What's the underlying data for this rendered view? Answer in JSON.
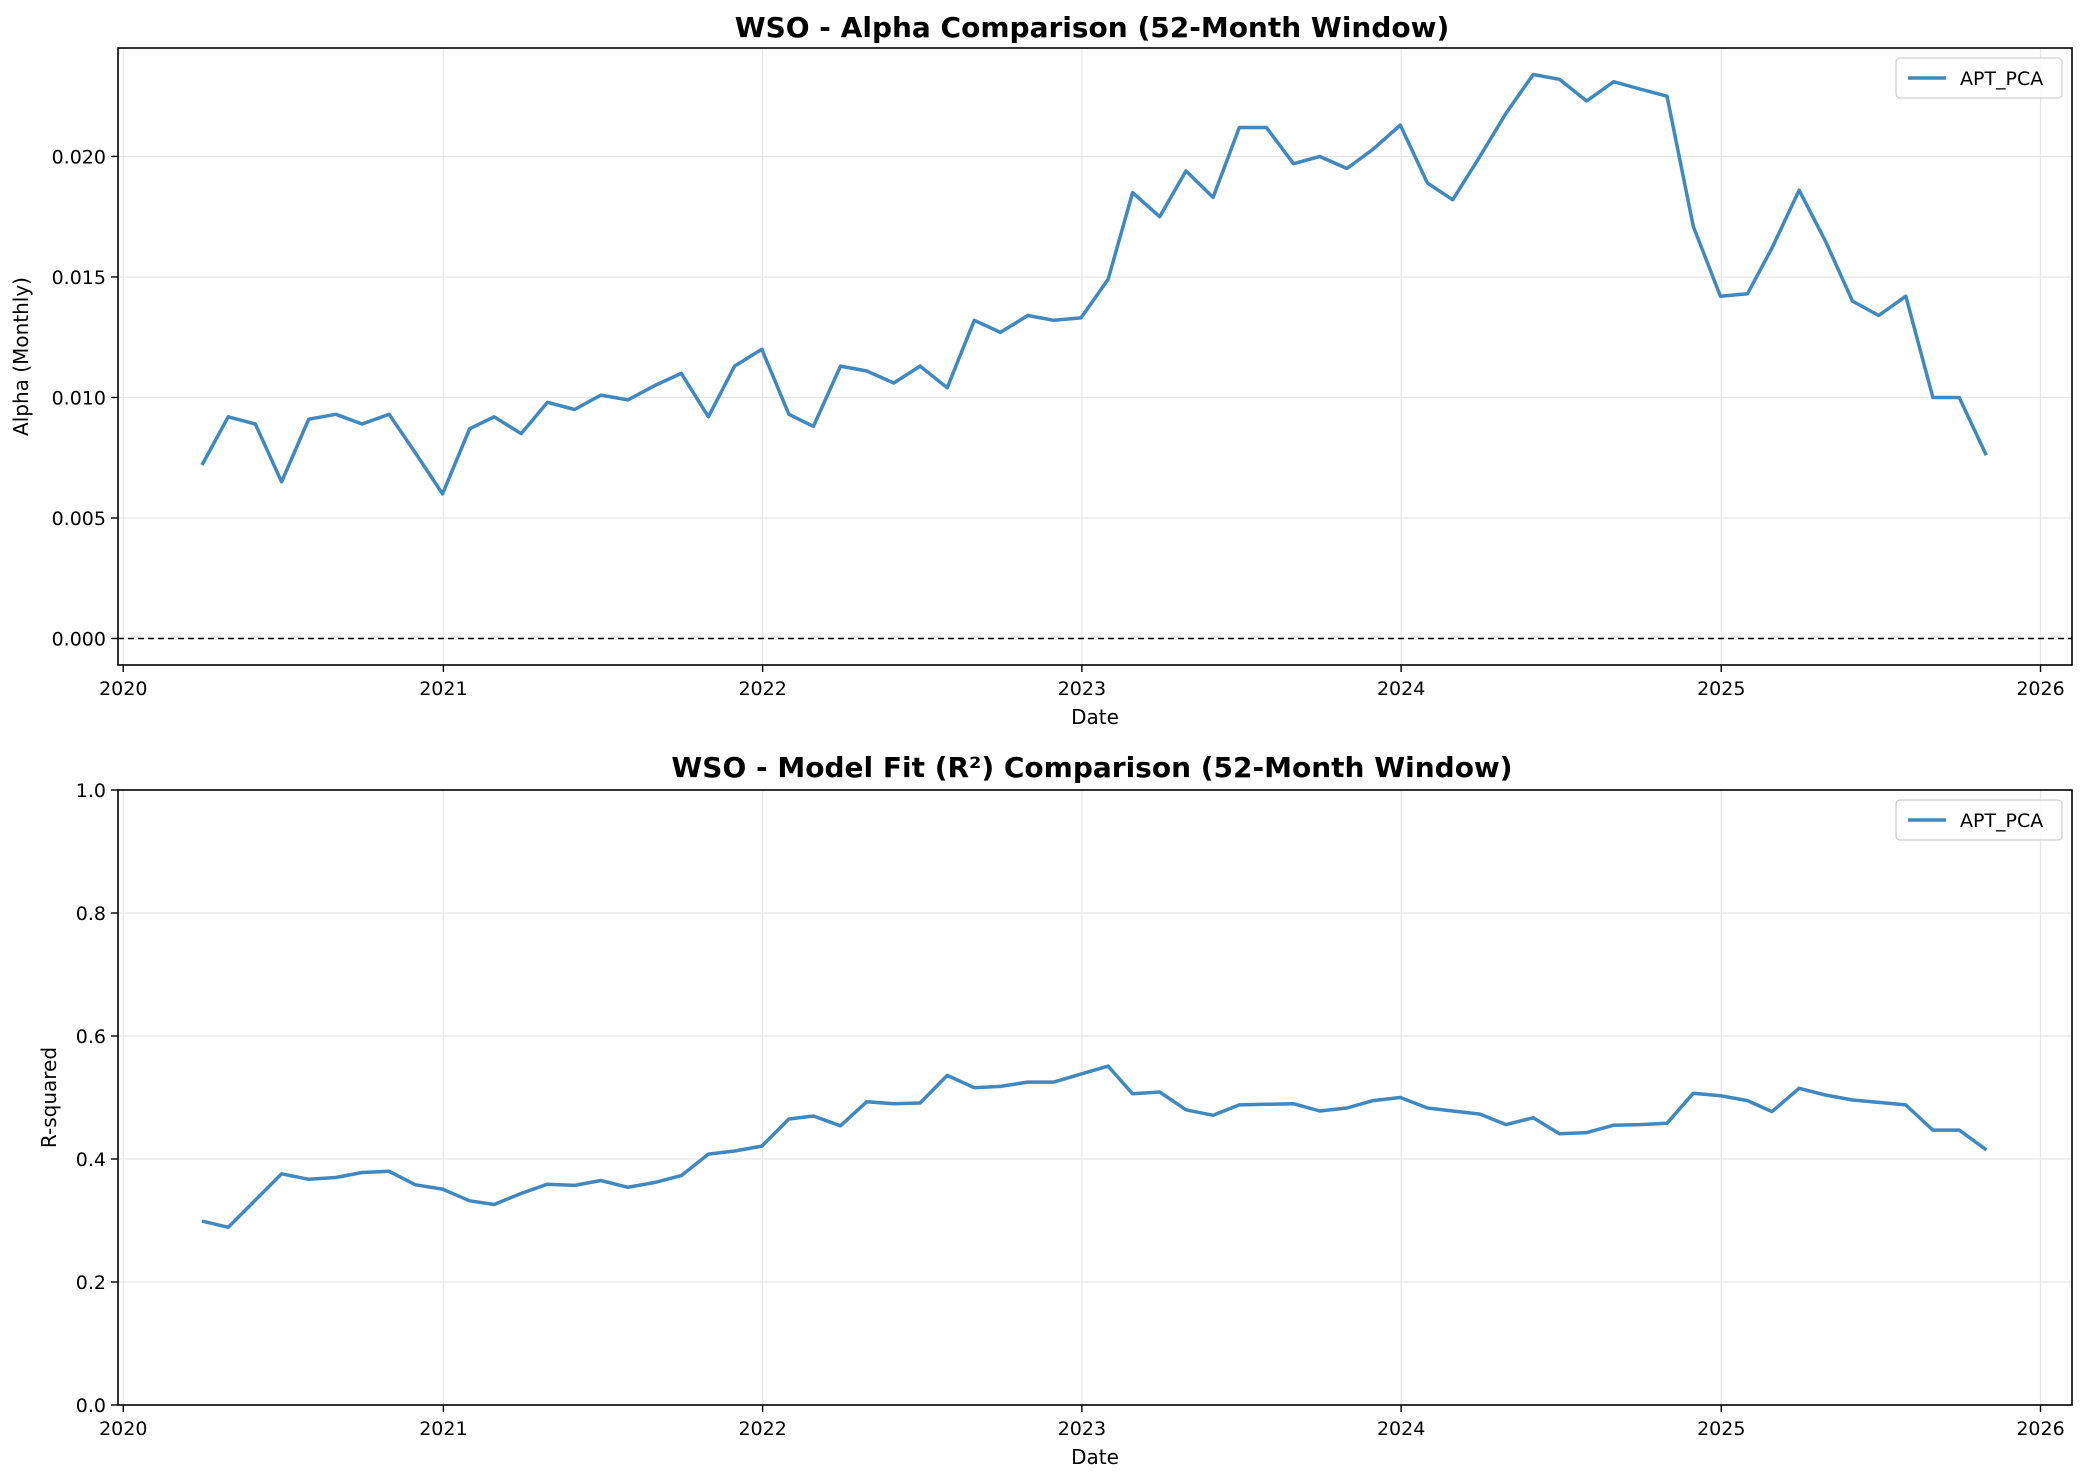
{
  "chart_data": [
    {
      "type": "line",
      "title": "WSO - Alpha Comparison (52-Month Window)",
      "xlabel": "Date",
      "ylabel": "Alpha (Monthly)",
      "xlim": [
        "2019-12-26",
        "2026-02-06"
      ],
      "ylim": [
        -0.0011,
        0.0245
      ],
      "xticks": [
        "2020",
        "2021",
        "2022",
        "2023",
        "2024",
        "2025",
        "2026"
      ],
      "yticks": [
        "0.000",
        "0.005",
        "0.010",
        "0.015",
        "0.020"
      ],
      "grid": true,
      "legend": "top-right",
      "reference_line": {
        "y": 0,
        "style": "dashed",
        "color": "#000000"
      },
      "series": [
        {
          "name": "APT_PCA",
          "color": "#3f88c0",
          "x": [
            "2020-03-31",
            "2020-04-30",
            "2020-05-31",
            "2020-06-30",
            "2020-07-31",
            "2020-08-31",
            "2020-09-30",
            "2020-10-31",
            "2020-11-30",
            "2020-12-31",
            "2021-01-31",
            "2021-02-28",
            "2021-03-31",
            "2021-04-30",
            "2021-05-31",
            "2021-06-30",
            "2021-07-31",
            "2021-08-31",
            "2021-09-30",
            "2021-10-31",
            "2021-11-30",
            "2021-12-31",
            "2022-01-31",
            "2022-02-28",
            "2022-03-31",
            "2022-04-30",
            "2022-05-31",
            "2022-06-30",
            "2022-07-31",
            "2022-08-31",
            "2022-09-30",
            "2022-10-31",
            "2022-11-30",
            "2022-12-31",
            "2023-01-31",
            "2023-02-28",
            "2023-03-31",
            "2023-04-30",
            "2023-05-31",
            "2023-06-30",
            "2023-07-31",
            "2023-08-31",
            "2023-09-30",
            "2023-10-31",
            "2023-11-30",
            "2023-12-31",
            "2024-01-31",
            "2024-02-29",
            "2024-03-31",
            "2024-04-30",
            "2024-05-31",
            "2024-06-30",
            "2024-07-31",
            "2024-08-31",
            "2024-09-30",
            "2024-10-31",
            "2024-11-30",
            "2024-12-31",
            "2025-01-31",
            "2025-02-28",
            "2025-03-31",
            "2025-04-30",
            "2025-05-31",
            "2025-06-30",
            "2025-07-31",
            "2025-08-31",
            "2025-09-30",
            "2025-10-31"
          ],
          "values": [
            0.0072,
            0.0092,
            0.0089,
            0.0065,
            0.0091,
            0.0093,
            0.0089,
            0.0093,
            0.0077,
            0.006,
            0.0087,
            0.0092,
            0.0085,
            0.0098,
            0.0095,
            0.0101,
            0.0099,
            0.0105,
            0.011,
            0.0092,
            0.0113,
            0.012,
            0.0093,
            0.0088,
            0.0113,
            0.0111,
            0.0106,
            0.0113,
            0.0104,
            0.0132,
            0.0127,
            0.0134,
            0.0132,
            0.0133,
            0.0149,
            0.0185,
            0.0175,
            0.0194,
            0.0183,
            0.0212,
            0.0212,
            0.0197,
            0.02,
            0.0195,
            0.0203,
            0.0213,
            0.0189,
            0.0182,
            0.02,
            0.0218,
            0.0234,
            0.0232,
            0.0223,
            0.0231,
            0.0228,
            0.0225,
            0.0171,
            0.0142,
            0.0143,
            0.0162,
            0.0186,
            0.0165,
            0.014,
            0.0134,
            0.0142,
            0.01,
            0.01,
            0.0076
          ]
        }
      ]
    },
    {
      "type": "line",
      "title": "WSO - Model Fit (R²) Comparison (52-Month Window)",
      "xlabel": "Date",
      "ylabel": "R-squared",
      "xlim": [
        "2019-12-26",
        "2026-02-06"
      ],
      "ylim": [
        0,
        1
      ],
      "xticks": [
        "2020",
        "2021",
        "2022",
        "2023",
        "2024",
        "2025",
        "2026"
      ],
      "yticks": [
        "0.0",
        "0.2",
        "0.4",
        "0.6",
        "0.8",
        "1.0"
      ],
      "grid": true,
      "legend": "top-right",
      "series": [
        {
          "name": "APT_PCA",
          "color": "#3f88c0",
          "x": [
            "2020-03-31",
            "2020-04-30",
            "2020-05-31",
            "2020-06-30",
            "2020-07-31",
            "2020-08-31",
            "2020-09-30",
            "2020-10-31",
            "2020-11-30",
            "2020-12-31",
            "2021-01-31",
            "2021-02-28",
            "2021-03-31",
            "2021-04-30",
            "2021-05-31",
            "2021-06-30",
            "2021-07-31",
            "2021-08-31",
            "2021-09-30",
            "2021-10-31",
            "2021-11-30",
            "2021-12-31",
            "2022-01-31",
            "2022-02-28",
            "2022-03-31",
            "2022-04-30",
            "2022-05-31",
            "2022-06-30",
            "2022-07-31",
            "2022-08-31",
            "2022-09-30",
            "2022-10-31",
            "2022-11-30",
            "2022-12-31",
            "2023-01-31",
            "2023-02-28",
            "2023-03-31",
            "2023-04-30",
            "2023-05-31",
            "2023-06-30",
            "2023-07-31",
            "2023-08-31",
            "2023-09-30",
            "2023-10-31",
            "2023-11-30",
            "2023-12-31",
            "2024-01-31",
            "2024-02-29",
            "2024-03-31",
            "2024-04-30",
            "2024-05-31",
            "2024-06-30",
            "2024-07-31",
            "2024-08-31",
            "2024-09-30",
            "2024-10-31",
            "2024-11-30",
            "2024-12-31",
            "2025-01-31",
            "2025-02-28",
            "2025-03-31",
            "2025-04-30",
            "2025-05-31",
            "2025-06-30",
            "2025-07-31",
            "2025-08-31",
            "2025-09-30",
            "2025-10-31"
          ],
          "values": [
            0.299,
            0.289,
            0.333,
            0.376,
            0.367,
            0.37,
            0.378,
            0.38,
            0.358,
            0.351,
            0.332,
            0.326,
            0.344,
            0.359,
            0.357,
            0.365,
            0.354,
            0.362,
            0.373,
            0.408,
            0.413,
            0.421,
            0.465,
            0.47,
            0.454,
            0.493,
            0.49,
            0.491,
            0.536,
            0.516,
            0.518,
            0.525,
            0.525,
            0.538,
            0.551,
            0.506,
            0.509,
            0.48,
            0.471,
            0.488,
            0.489,
            0.49,
            0.478,
            0.483,
            0.495,
            0.5,
            0.483,
            0.478,
            0.473,
            0.456,
            0.467,
            0.441,
            0.443,
            0.455,
            0.456,
            0.458,
            0.507,
            0.503,
            0.495,
            0.477,
            0.515,
            0.504,
            0.496,
            0.492,
            0.488,
            0.447,
            0.447,
            0.415
          ]
        }
      ]
    }
  ]
}
